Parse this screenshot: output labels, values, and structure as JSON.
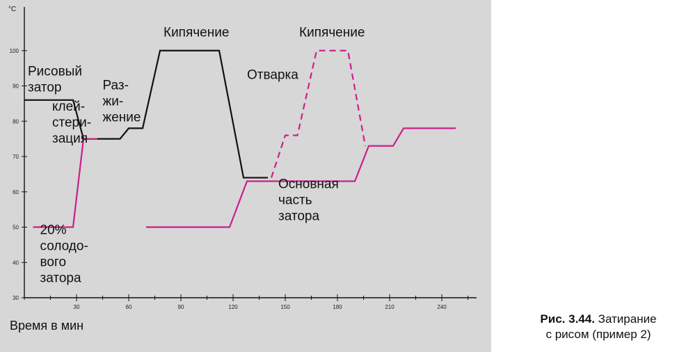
{
  "caption": {
    "label": "Рис. 3.44.",
    "text_line1": "Затирание",
    "text_line2": "с рисом (пример 2)"
  },
  "chart_data": {
    "type": "line",
    "xlabel": "Время в мин",
    "ylabel": "",
    "y_unit": "°C",
    "xlim": [
      0,
      260
    ],
    "ylim": [
      30,
      110
    ],
    "x_ticks": [
      30,
      60,
      90,
      120,
      150,
      180,
      210,
      240
    ],
    "y_ticks": [
      30,
      40,
      50,
      60,
      70,
      80,
      90,
      100
    ],
    "grid": false,
    "series": [
      {
        "color": "#111111",
        "style": "solid",
        "points": [
          [
            0,
            86
          ],
          [
            28,
            86
          ],
          [
            34,
            75
          ],
          [
            55,
            75
          ],
          [
            60,
            78
          ],
          [
            68,
            78
          ],
          [
            78,
            100
          ],
          [
            112,
            100
          ],
          [
            126,
            64
          ],
          [
            140,
            64
          ]
        ]
      },
      {
        "color": "#cc1f8a",
        "style": "solid",
        "points": [
          [
            5,
            50
          ],
          [
            28,
            50
          ],
          [
            34,
            75
          ],
          [
            42,
            75
          ]
        ]
      },
      {
        "color": "#cc1f8a",
        "style": "solid",
        "points": [
          [
            70,
            50
          ],
          [
            118,
            50
          ],
          [
            128,
            63
          ],
          [
            190,
            63
          ],
          [
            198,
            73
          ],
          [
            212,
            73
          ],
          [
            218,
            78
          ],
          [
            248,
            78
          ]
        ]
      },
      {
        "color": "#cc1f8a",
        "style": "dashed",
        "points": [
          [
            142,
            64
          ],
          [
            150,
            76
          ],
          [
            157,
            76
          ],
          [
            168,
            100
          ],
          [
            186,
            100
          ],
          [
            196,
            73
          ]
        ]
      }
    ],
    "annotations": [
      {
        "lines": [
          "Рисовый",
          "затор"
        ],
        "x": 2,
        "y": 93
      },
      {
        "lines": [
          "клей-",
          "стери-",
          "зация"
        ],
        "x": 16,
        "y": 83
      },
      {
        "lines": [
          "Раз-",
          "жи-",
          "жение"
        ],
        "x": 45,
        "y": 89
      },
      {
        "lines": [
          "Кипячение"
        ],
        "x": 80,
        "y": 104
      },
      {
        "lines": [
          "Кипячение"
        ],
        "x": 158,
        "y": 104
      },
      {
        "lines": [
          "Отварка"
        ],
        "x": 128,
        "y": 92
      },
      {
        "lines": [
          "Основная",
          "часть",
          "затора"
        ],
        "x": 146,
        "y": 61
      },
      {
        "lines": [
          "20%",
          "солодо-",
          "вого",
          "затора"
        ],
        "x": 9,
        "y": 48
      }
    ]
  }
}
